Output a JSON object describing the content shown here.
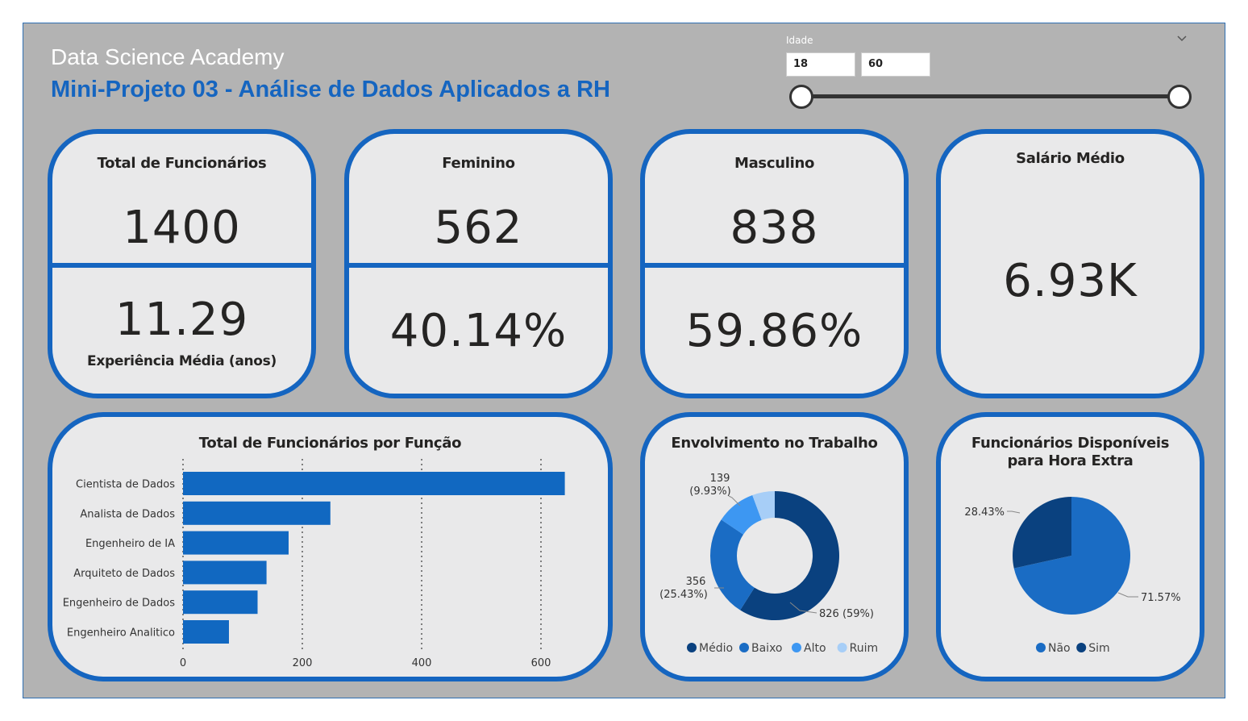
{
  "header": {
    "org": "Data Science Academy",
    "title": "Mini-Projeto 03 - Análise de Dados Aplicados a RH"
  },
  "slicer": {
    "label": "Idade",
    "min_value": "18",
    "max_value": "60",
    "range_min": 18,
    "range_max": 60
  },
  "kpis": {
    "total": {
      "title": "Total de Funcionários",
      "value": "1400",
      "sub_value": "11.29",
      "sub_label": "Experiência Média (anos)"
    },
    "female": {
      "title": "Feminino",
      "value": "562",
      "pct": "40.14%"
    },
    "male": {
      "title": "Masculino",
      "value": "838",
      "pct": "59.86%"
    },
    "salary": {
      "title": "Salário Médio",
      "value": "6.93K"
    }
  },
  "colors": {
    "accent": "#1565c0",
    "bar": "#1168c1",
    "dark_navy": "#0a417f",
    "mid_blue": "#1a6cc4",
    "bright_blue": "#3d97f2",
    "light_blue": "#a7cef7"
  },
  "chart_data": [
    {
      "type": "bar",
      "title": "Total de Funcionários por Função",
      "orientation": "horizontal",
      "categories": [
        "Cientista de Dados",
        "Analista de Dados",
        "Engenheiro de IA",
        "Arquiteto de Dados",
        "Engenheiro de Dados",
        "Engenheiro Analitico"
      ],
      "values": [
        640,
        247,
        177,
        140,
        125,
        77
      ],
      "xlim": [
        0,
        650
      ],
      "xticks": [
        0,
        200,
        400,
        600
      ],
      "grid": true
    },
    {
      "type": "pie",
      "title": "Envolvimento no Trabalho",
      "donut": true,
      "labels": [
        "Médio",
        "Baixo",
        "Alto",
        "Ruim"
      ],
      "values": [
        826,
        356,
        139,
        79
      ],
      "data_labels": [
        {
          "count": "826",
          "pct": "(59%)"
        },
        {
          "count": "356",
          "pct": "(25.43%)"
        },
        {
          "count": "139",
          "pct": "(9.93%)"
        }
      ],
      "legend": "bottom"
    },
    {
      "type": "pie",
      "title": "Funcionários Disponíveis para Hora Extra",
      "labels": [
        "Não",
        "Sim"
      ],
      "values": [
        71.57,
        28.43
      ],
      "data_labels": [
        "71.57%",
        "28.43%"
      ],
      "legend": "bottom"
    }
  ]
}
